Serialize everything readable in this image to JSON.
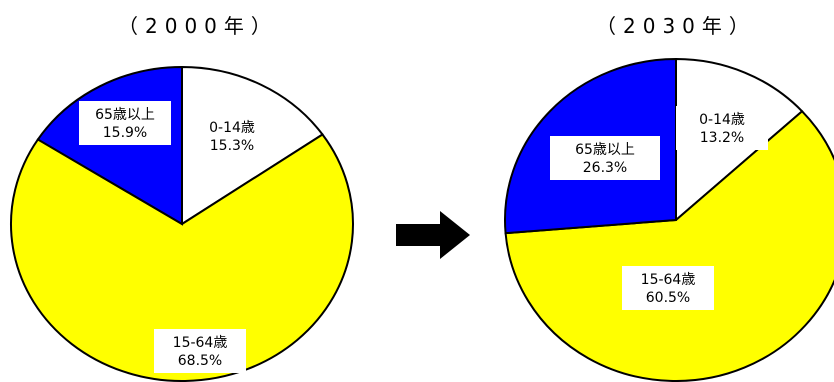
{
  "chart_data": [
    {
      "type": "pie",
      "title": "（2000年）",
      "slices": [
        {
          "label": "0-14歳",
          "value": 15.3,
          "value_label": "15.3%",
          "color": "#ffffff"
        },
        {
          "label": "15-64歳",
          "value": 68.5,
          "value_label": "68.5%",
          "color": "#ffff00"
        },
        {
          "label": "65歳以上",
          "value": 15.9,
          "value_label": "15.9%",
          "color": "#0000ff"
        }
      ]
    },
    {
      "type": "pie",
      "title": "（2030年）",
      "slices": [
        {
          "label": "0-14歳",
          "value": 13.2,
          "value_label": "13.2%",
          "color": "#ffffff"
        },
        {
          "label": "15-64歳",
          "value": 60.5,
          "value_label": "60.5%",
          "color": "#ffff00"
        },
        {
          "label": "65歳以上",
          "value": 26.3,
          "value_label": "26.3%",
          "color": "#0000ff"
        }
      ]
    }
  ],
  "arrow": {
    "icon": "right-arrow-icon",
    "color": "#000000"
  }
}
